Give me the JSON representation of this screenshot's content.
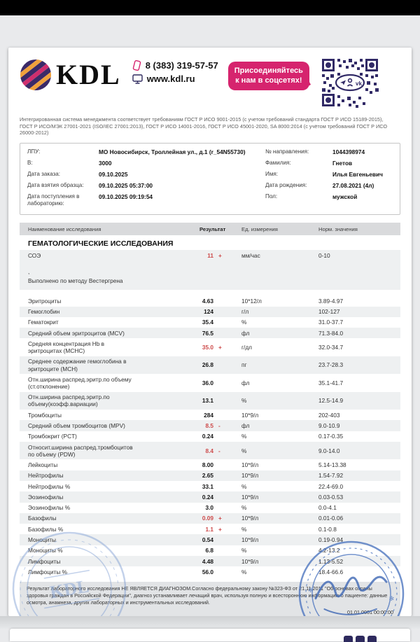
{
  "colors": {
    "accent_pink": "#d6246e",
    "navy": "#312a66",
    "abnormal_red": "#cd4a4a"
  },
  "icons": {
    "logo": "kdl-logo-circle-icon",
    "phone": "phone-icon",
    "website": "monitor-icon",
    "qr": "qr-code-icon",
    "stamp_left": "kdl-round-stamp",
    "stamp_right": "doctor-signature-stamp"
  },
  "header": {
    "logo_text": "KDL",
    "phone": "8 (383) 319-57-57",
    "website": "www.kdl.ru",
    "social_badge_line1": "Присоединяйтесь",
    "social_badge_line2": "к нам в соцсетях!",
    "iso_text": "Интегрированная система менеджмента соответствует требованиям ГОСТ Р ИСО 9001-2015 (с учетом требований стандарта ГОСТ Р ИСО 15189-2015), ГОСТ Р ИСО/МЭК 27001-2021 (ISO/IEC 27001:2013), ГОСТ Р ИСО 14001-2016, ГОСТ Р ИСО 45001-2020, SA 8000:2014 (с учётом требований ГОСТ Р ИСО 26000-2012)"
  },
  "patient": {
    "rows": [
      {
        "left_label": "ЛПУ:",
        "left_value": "МО Новосибирск, Троллейная ул., д.1 (r_54N55730)",
        "right_label": "№ направления:",
        "right_value": "1044398974"
      },
      {
        "left_label": "В:",
        "left_value": "3000",
        "right_label": "Фамилия:",
        "right_value": "Гнетов"
      },
      {
        "left_label": "Дата заказа:",
        "left_value": "09.10.2025",
        "right_label": "Имя:",
        "right_value": "Илья Евгеньевич"
      },
      {
        "left_label": "Дата взятия образца:",
        "left_value": "09.10.2025 05:37:00",
        "right_label": "Дата рождения:",
        "right_value": "27.08.2021 (4л)"
      },
      {
        "left_label": "Дата поступления в лабораторию:",
        "left_value": "09.10.2025 09:19:54",
        "right_label": "Пол:",
        "right_value": "мужской"
      }
    ]
  },
  "table": {
    "headers": [
      "Наименование исследования",
      "Результат",
      "Ед. измерения",
      "Норм. значения"
    ],
    "section_title": "ГЕМАТОЛОГИЧЕСКИЕ ИССЛЕДОВАНИЯ",
    "rows": [
      {
        "name": "СОЭ",
        "result": "11",
        "marker": "+",
        "unit": "мм/час",
        "norm": "0-10",
        "abnormal": true,
        "shaded": true,
        "comment_lines": [
          ",",
          "Выполнено по методу Вестергрена"
        ]
      },
      {
        "name": "Эритроциты",
        "result": "4.63",
        "marker": "",
        "unit": "10*12/л",
        "norm": "3.89-4.97",
        "abnormal": false,
        "shaded": false
      },
      {
        "name": "Гемоглобин",
        "result": "124",
        "marker": "",
        "unit": "г/л",
        "norm": "102-127",
        "abnormal": false,
        "shaded": true
      },
      {
        "name": "Гематокрит",
        "result": "35.4",
        "marker": "",
        "unit": "%",
        "norm": "31.0-37.7",
        "abnormal": false,
        "shaded": false
      },
      {
        "name": "Средний объем эритроцитов (MCV)",
        "result": "76.5",
        "marker": "",
        "unit": "фл",
        "norm": "71.3-84.0",
        "abnormal": false,
        "shaded": true
      },
      {
        "name": "Средняя концентрация Hb в эритроцитах (MCHC)",
        "result": "35.0",
        "marker": "+",
        "unit": "г/дл",
        "norm": "32.0-34.7",
        "abnormal": true,
        "shaded": false
      },
      {
        "name": "Среднее содержание гемоглобина в эритроците (MCH)",
        "result": "26.8",
        "marker": "",
        "unit": "пг",
        "norm": "23.7-28.3",
        "abnormal": false,
        "shaded": true
      },
      {
        "name": "Отн.ширина распред.эритр.по объему (ст.отклонение)",
        "result": "36.0",
        "marker": "",
        "unit": "фл",
        "norm": "35.1-41.7",
        "abnormal": false,
        "shaded": false
      },
      {
        "name": "Отн.ширина распред.эритр.по объему(коэфф.вариации)",
        "result": "13.1",
        "marker": "",
        "unit": "%",
        "norm": "12.5-14.9",
        "abnormal": false,
        "shaded": true
      },
      {
        "name": "Тромбоциты",
        "result": "284",
        "marker": "",
        "unit": "10*9/л",
        "norm": "202-403",
        "abnormal": false,
        "shaded": false
      },
      {
        "name": "Средний объем тромбоцитов (MPV)",
        "result": "8.5",
        "marker": "-",
        "unit": "фл",
        "norm": "9.0-10.9",
        "abnormal": true,
        "shaded": true
      },
      {
        "name": "Тромбокрит (PCT)",
        "result": "0.24",
        "marker": "",
        "unit": "%",
        "norm": "0.17-0.35",
        "abnormal": false,
        "shaded": false
      },
      {
        "name": "Относит.ширина распред.тромбоцитов по объему (PDW)",
        "result": "8.4",
        "marker": "-",
        "unit": "%",
        "norm": "9.0-14.0",
        "abnormal": true,
        "shaded": true
      },
      {
        "name": "Лейкоциты",
        "result": "8.00",
        "marker": "",
        "unit": "10*9/л",
        "norm": "5.14-13.38",
        "abnormal": false,
        "shaded": false
      },
      {
        "name": "Нейтрофилы",
        "result": "2.65",
        "marker": "",
        "unit": "10*9/л",
        "norm": "1.54-7.92",
        "abnormal": false,
        "shaded": true
      },
      {
        "name": "Нейтрофилы %",
        "result": "33.1",
        "marker": "",
        "unit": "%",
        "norm": "22.4-69.0",
        "abnormal": false,
        "shaded": false
      },
      {
        "name": "Эозинофилы",
        "result": "0.24",
        "marker": "",
        "unit": "10*9/л",
        "norm": "0.03-0.53",
        "abnormal": false,
        "shaded": true
      },
      {
        "name": "Эозинофилы %",
        "result": "3.0",
        "marker": "",
        "unit": "%",
        "norm": "0.0-4.1",
        "abnormal": false,
        "shaded": false
      },
      {
        "name": "Базофилы",
        "result": "0.09",
        "marker": "+",
        "unit": "10*9/л",
        "norm": "0.01-0.06",
        "abnormal": true,
        "shaded": true
      },
      {
        "name": "Базофилы %",
        "result": "1.1",
        "marker": "+",
        "unit": "%",
        "norm": "0.1-0.8",
        "abnormal": true,
        "shaded": false
      },
      {
        "name": "Моноциты",
        "result": "0.54",
        "marker": "",
        "unit": "10*9/л",
        "norm": "0.19-0.94",
        "abnormal": false,
        "shaded": true
      },
      {
        "name": "Моноциты %",
        "result": "6.8",
        "marker": "",
        "unit": "%",
        "norm": "4.2-13.2",
        "abnormal": false,
        "shaded": false
      },
      {
        "name": "Лимфоциты",
        "result": "4.48",
        "marker": "",
        "unit": "10*9/л",
        "norm": "1.13-5.52",
        "abnormal": false,
        "shaded": true
      },
      {
        "name": "Лимфоциты %",
        "result": "56.0",
        "marker": "",
        "unit": "%",
        "norm": "18.4-66.6",
        "abnormal": false,
        "shaded": false
      }
    ]
  },
  "footer": {
    "disclaimer": "Результат лабораторного исследования НЕ ЯВЛЯЕТСЯ ДИАГНОЗОМ.Согласно федеральному закону №323-ФЗ от 21.11.2011 \"Об основах охраны здоровья граждан в Российской Федерации\", диагноз устанавливает лечащий врач, используя полную и всестороннюю информацию о пациенте: данные осмотра, анамнеза, других лабораторных и инструментальных исследований.",
    "timestamp": "01.01.0001 00:00:00"
  },
  "stamps": {
    "left_text": "KDL"
  }
}
